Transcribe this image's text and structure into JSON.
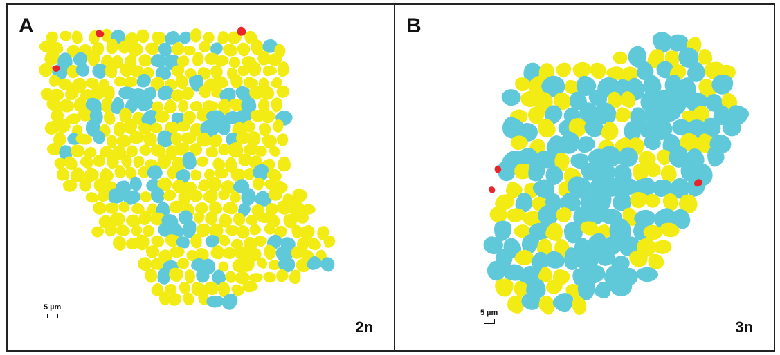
{
  "legend_colors": {
    "yellow": "#f3ec14",
    "cyan": "#5fc8d9",
    "red": "#e8252a"
  },
  "panels": [
    {
      "letter": "A",
      "ploidy": "2n",
      "scale_label": "5 µm"
    },
    {
      "letter": "B",
      "ploidy": "3n",
      "scale_label": "5 µm"
    }
  ]
}
